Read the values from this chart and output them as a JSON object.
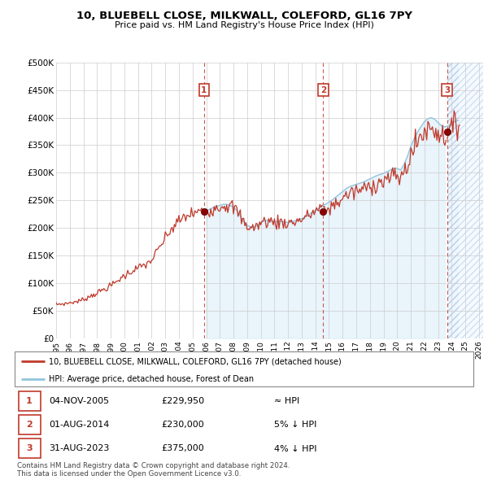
{
  "title": "10, BLUEBELL CLOSE, MILKWALL, COLEFORD, GL16 7PY",
  "subtitle": "Price paid vs. HM Land Registry's House Price Index (HPI)",
  "ylim": [
    0,
    500000
  ],
  "yticks": [
    0,
    50000,
    100000,
    150000,
    200000,
    250000,
    300000,
    350000,
    400000,
    450000,
    500000
  ],
  "ytick_labels": [
    "£0",
    "£50K",
    "£100K",
    "£150K",
    "£200K",
    "£250K",
    "£300K",
    "£350K",
    "£400K",
    "£450K",
    "£500K"
  ],
  "xlim_start": 1995.0,
  "xlim_end": 2026.3,
  "hpi_color": "#92c5de",
  "price_color": "#c0392b",
  "sale_marker_color": "#8b0000",
  "annotation_box_color": "#c0392b",
  "dashed_line_color": "#c0392b",
  "legend_label_price": "10, BLUEBELL CLOSE, MILKWALL, COLEFORD, GL16 7PY (detached house)",
  "legend_label_hpi": "HPI: Average price, detached house, Forest of Dean",
  "sale_points": [
    {
      "num": 1,
      "date": "04-NOV-2005",
      "price": 229950,
      "year": 2005.84,
      "label": "≈ HPI"
    },
    {
      "num": 2,
      "date": "01-AUG-2014",
      "price": 230000,
      "year": 2014.58,
      "label": "5% ↓ HPI"
    },
    {
      "num": 3,
      "date": "31-AUG-2023",
      "price": 375000,
      "year": 2023.66,
      "label": "4% ↓ HPI"
    }
  ],
  "footer_line1": "Contains HM Land Registry data © Crown copyright and database right 2024.",
  "footer_line2": "This data is licensed under the Open Government Licence v3.0.",
  "background_color": "#ffffff",
  "grid_color": "#cccccc",
  "hpi_quarterly_x": [
    1995.0,
    1995.25,
    1995.5,
    1995.75,
    1996.0,
    1996.25,
    1996.5,
    1996.75,
    1997.0,
    1997.25,
    1997.5,
    1997.75,
    1998.0,
    1998.25,
    1998.5,
    1998.75,
    1999.0,
    1999.25,
    1999.5,
    1999.75,
    2000.0,
    2000.25,
    2000.5,
    2000.75,
    2001.0,
    2001.25,
    2001.5,
    2001.75,
    2002.0,
    2002.25,
    2002.5,
    2002.75,
    2003.0,
    2003.25,
    2003.5,
    2003.75,
    2004.0,
    2004.25,
    2004.5,
    2004.75,
    2005.0,
    2005.25,
    2005.5,
    2005.75,
    2006.0,
    2006.25,
    2006.5,
    2006.75,
    2007.0,
    2007.25,
    2007.5,
    2007.75,
    2008.0,
    2008.25,
    2008.5,
    2008.75,
    2009.0,
    2009.25,
    2009.5,
    2009.75,
    2010.0,
    2010.25,
    2010.5,
    2010.75,
    2011.0,
    2011.25,
    2011.5,
    2011.75,
    2012.0,
    2012.25,
    2012.5,
    2012.75,
    2013.0,
    2013.25,
    2013.5,
    2013.75,
    2014.0,
    2014.25,
    2014.5,
    2014.75,
    2015.0,
    2015.25,
    2015.5,
    2015.75,
    2016.0,
    2016.25,
    2016.5,
    2016.75,
    2017.0,
    2017.25,
    2017.5,
    2017.75,
    2018.0,
    2018.25,
    2018.5,
    2018.75,
    2019.0,
    2019.25,
    2019.5,
    2019.75,
    2020.0,
    2020.25,
    2020.5,
    2020.75,
    2021.0,
    2021.25,
    2021.5,
    2021.75,
    2022.0,
    2022.25,
    2022.5,
    2022.75,
    2023.0,
    2023.25,
    2023.5,
    2023.75,
    2024.0,
    2024.25,
    2024.5
  ],
  "hpi_quarterly_y": [
    62000,
    62500,
    63000,
    63500,
    65000,
    66000,
    67000,
    68500,
    71000,
    74000,
    77000,
    80000,
    83000,
    86000,
    89500,
    92000,
    96000,
    100000,
    105000,
    110000,
    114000,
    118000,
    122000,
    126000,
    128000,
    131000,
    134000,
    137000,
    143000,
    152000,
    162000,
    172000,
    182000,
    192000,
    200000,
    207000,
    213000,
    218000,
    222000,
    225000,
    227000,
    229000,
    230000,
    231000,
    232000,
    234000,
    237000,
    239000,
    241000,
    243000,
    243000,
    241000,
    238000,
    232000,
    222000,
    212000,
    205000,
    202000,
    202000,
    205000,
    210000,
    213000,
    214000,
    213000,
    211000,
    212000,
    212000,
    211000,
    210000,
    211000,
    213000,
    215000,
    217000,
    220000,
    224000,
    228000,
    232000,
    236000,
    240000,
    243000,
    247000,
    251000,
    256000,
    261000,
    266000,
    271000,
    275000,
    277000,
    279000,
    281000,
    283000,
    286000,
    289000,
    292000,
    295000,
    297000,
    299000,
    302000,
    305000,
    308000,
    308000,
    305000,
    315000,
    330000,
    348000,
    362000,
    374000,
    384000,
    393000,
    398000,
    400000,
    397000,
    391000,
    385000,
    383000,
    385000,
    390000,
    393000,
    395000
  ],
  "xtick_years": [
    1995,
    1996,
    1997,
    1998,
    1999,
    2000,
    2001,
    2002,
    2003,
    2004,
    2005,
    2006,
    2007,
    2008,
    2009,
    2010,
    2011,
    2012,
    2013,
    2014,
    2015,
    2016,
    2017,
    2018,
    2019,
    2020,
    2021,
    2022,
    2023,
    2024,
    2025,
    2026
  ]
}
